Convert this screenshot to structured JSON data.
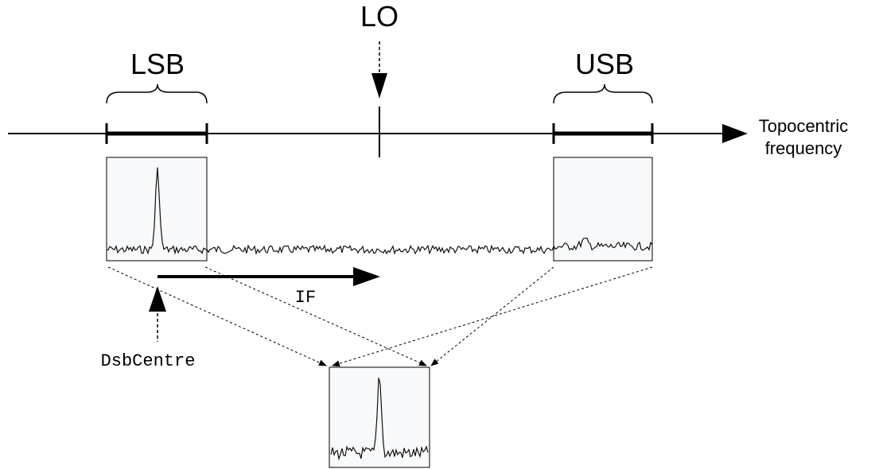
{
  "labels": {
    "lo": "LO",
    "lsb": "LSB",
    "usb": "USB",
    "axis_line1": "Topocentric",
    "axis_line2": "frequency",
    "if": "IF",
    "dsb_centre": "DsbCentre"
  },
  "colors": {
    "ink": "#000000",
    "panel_fill": "#f7f9fb",
    "trace": "#1a1a1a"
  }
}
